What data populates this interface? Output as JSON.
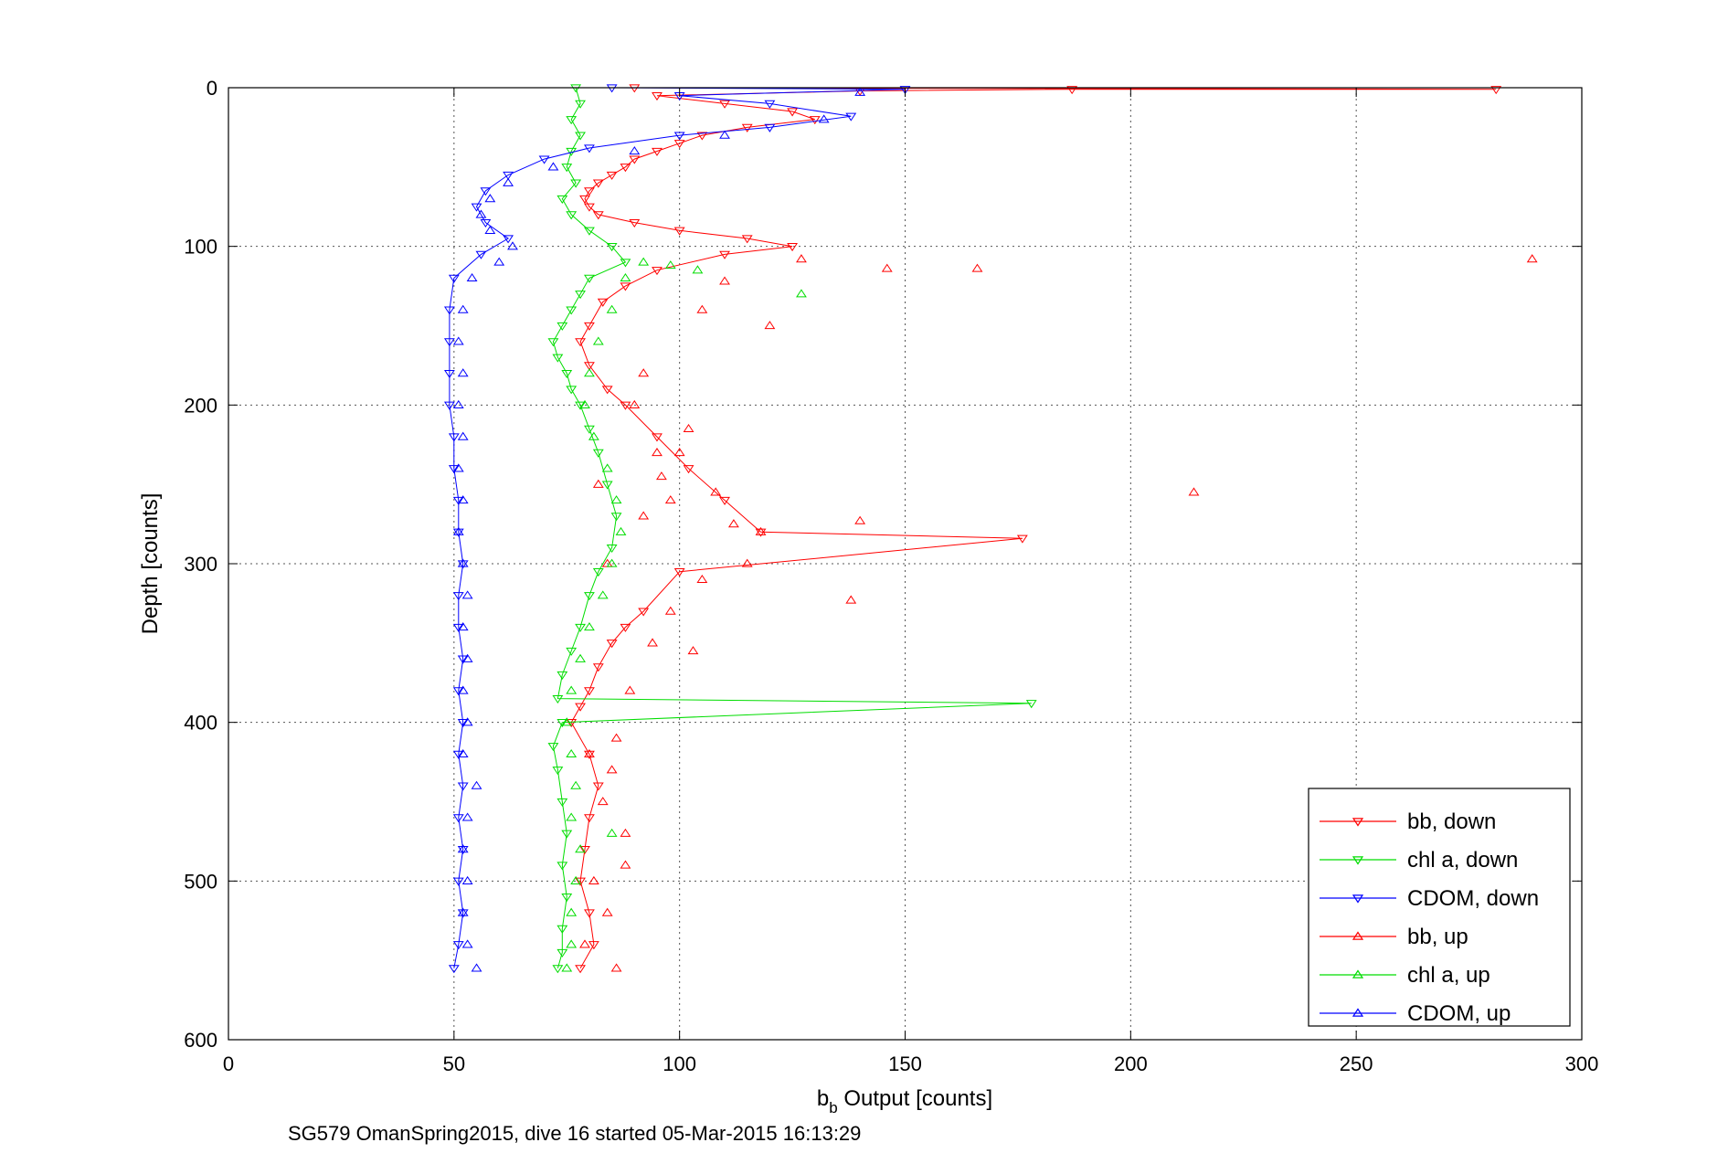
{
  "chart_data": {
    "type": "scatter",
    "xlabel": "Output [counts]",
    "xlabel_prefix": "b",
    "xlabel_sub": "b",
    "ylabel": "Depth [counts]",
    "caption": "SG579 OmanSpring2015, dive 16 started 05-Mar-2015 16:13:29",
    "xlim": [
      0,
      300
    ],
    "ylim": [
      0,
      600
    ],
    "y_reversed": true,
    "grid": true,
    "legend_position": "bottom-right",
    "x_ticks": [
      "0",
      "50",
      "100",
      "150",
      "200",
      "250",
      "300"
    ],
    "y_ticks": [
      "0",
      "100",
      "200",
      "300",
      "400",
      "500",
      "600"
    ],
    "series": [
      {
        "name": "bb, down",
        "color": "#ff0000",
        "marker": "triangle-down",
        "connected": true,
        "points": [
          [
            90,
            0
          ],
          [
            281,
            1
          ],
          [
            187,
            1
          ],
          [
            140,
            2
          ],
          [
            95,
            5
          ],
          [
            110,
            10
          ],
          [
            125,
            15
          ],
          [
            130,
            20
          ],
          [
            115,
            25
          ],
          [
            105,
            30
          ],
          [
            100,
            35
          ],
          [
            95,
            40
          ],
          [
            90,
            45
          ],
          [
            88,
            50
          ],
          [
            85,
            55
          ],
          [
            82,
            60
          ],
          [
            80,
            65
          ],
          [
            79,
            70
          ],
          [
            80,
            75
          ],
          [
            82,
            80
          ],
          [
            90,
            85
          ],
          [
            100,
            90
          ],
          [
            115,
            95
          ],
          [
            125,
            100
          ],
          [
            110,
            105
          ],
          [
            95,
            115
          ],
          [
            88,
            125
          ],
          [
            83,
            135
          ],
          [
            80,
            150
          ],
          [
            78,
            160
          ],
          [
            80,
            175
          ],
          [
            84,
            190
          ],
          [
            88,
            200
          ],
          [
            95,
            220
          ],
          [
            102,
            240
          ],
          [
            110,
            260
          ],
          [
            118,
            280
          ],
          [
            176,
            284
          ],
          [
            100,
            305
          ],
          [
            92,
            330
          ],
          [
            88,
            340
          ],
          [
            85,
            350
          ],
          [
            82,
            365
          ],
          [
            80,
            380
          ],
          [
            78,
            390
          ],
          [
            76,
            400
          ],
          [
            80,
            420
          ],
          [
            82,
            440
          ],
          [
            80,
            460
          ],
          [
            79,
            480
          ],
          [
            78,
            500
          ],
          [
            80,
            520
          ],
          [
            81,
            540
          ],
          [
            78,
            555
          ]
        ]
      },
      {
        "name": "chl a, down",
        "color": "#00dd00",
        "marker": "triangle-down",
        "connected": true,
        "points": [
          [
            77,
            0
          ],
          [
            78,
            10
          ],
          [
            76,
            20
          ],
          [
            78,
            30
          ],
          [
            76,
            40
          ],
          [
            75,
            50
          ],
          [
            77,
            60
          ],
          [
            74,
            70
          ],
          [
            76,
            80
          ],
          [
            80,
            90
          ],
          [
            85,
            100
          ],
          [
            88,
            110
          ],
          [
            80,
            120
          ],
          [
            78,
            130
          ],
          [
            76,
            140
          ],
          [
            74,
            150
          ],
          [
            72,
            160
          ],
          [
            73,
            170
          ],
          [
            75,
            180
          ],
          [
            76,
            190
          ],
          [
            78,
            200
          ],
          [
            80,
            215
          ],
          [
            82,
            230
          ],
          [
            84,
            250
          ],
          [
            86,
            270
          ],
          [
            85,
            290
          ],
          [
            82,
            305
          ],
          [
            80,
            320
          ],
          [
            78,
            340
          ],
          [
            76,
            355
          ],
          [
            74,
            370
          ],
          [
            73,
            385
          ],
          [
            178,
            388
          ],
          [
            74,
            400
          ],
          [
            72,
            415
          ],
          [
            73,
            430
          ],
          [
            74,
            450
          ],
          [
            75,
            470
          ],
          [
            74,
            490
          ],
          [
            75,
            510
          ],
          [
            74,
            530
          ],
          [
            74,
            545
          ],
          [
            73,
            555
          ]
        ]
      },
      {
        "name": "CDOM, down",
        "color": "#0000ff",
        "marker": "triangle-down",
        "connected": true,
        "points": [
          [
            85,
            0
          ],
          [
            150,
            1
          ],
          [
            100,
            5
          ],
          [
            120,
            10
          ],
          [
            138,
            18
          ],
          [
            120,
            25
          ],
          [
            100,
            30
          ],
          [
            80,
            38
          ],
          [
            70,
            45
          ],
          [
            62,
            55
          ],
          [
            57,
            65
          ],
          [
            55,
            75
          ],
          [
            57,
            85
          ],
          [
            62,
            95
          ],
          [
            56,
            105
          ],
          [
            50,
            120
          ],
          [
            49,
            140
          ],
          [
            49,
            160
          ],
          [
            49,
            180
          ],
          [
            49,
            200
          ],
          [
            50,
            220
          ],
          [
            50,
            240
          ],
          [
            51,
            260
          ],
          [
            51,
            280
          ],
          [
            52,
            300
          ],
          [
            51,
            320
          ],
          [
            51,
            340
          ],
          [
            52,
            360
          ],
          [
            51,
            380
          ],
          [
            52,
            400
          ],
          [
            51,
            420
          ],
          [
            52,
            440
          ],
          [
            51,
            460
          ],
          [
            52,
            480
          ],
          [
            51,
            500
          ],
          [
            52,
            520
          ],
          [
            51,
            540
          ],
          [
            50,
            555
          ]
        ]
      },
      {
        "name": "bb, up",
        "color": "#ff0000",
        "marker": "triangle-up",
        "connected": false,
        "points": [
          [
            289,
            108
          ],
          [
            214,
            255
          ],
          [
            166,
            114
          ],
          [
            146,
            114
          ],
          [
            140,
            273
          ],
          [
            138,
            323
          ],
          [
            127,
            108
          ],
          [
            120,
            150
          ],
          [
            118,
            280
          ],
          [
            115,
            300
          ],
          [
            112,
            275
          ],
          [
            108,
            255
          ],
          [
            105,
            310
          ],
          [
            102,
            215
          ],
          [
            100,
            230
          ],
          [
            98,
            330
          ],
          [
            96,
            245
          ],
          [
            94,
            350
          ],
          [
            92,
            270
          ],
          [
            90,
            200
          ],
          [
            89,
            380
          ],
          [
            88,
            470
          ],
          [
            86,
            410
          ],
          [
            85,
            430
          ],
          [
            84,
            300
          ],
          [
            83,
            450
          ],
          [
            82,
            250
          ],
          [
            81,
            500
          ],
          [
            80,
            420
          ],
          [
            79,
            540
          ],
          [
            86,
            555
          ],
          [
            84,
            520
          ],
          [
            88,
            490
          ],
          [
            110,
            122
          ],
          [
            105,
            140
          ],
          [
            95,
            230
          ],
          [
            98,
            260
          ],
          [
            92,
            180
          ],
          [
            103,
            355
          ]
        ]
      },
      {
        "name": "chl a, up",
        "color": "#00dd00",
        "marker": "triangle-up",
        "connected": false,
        "points": [
          [
            127,
            130
          ],
          [
            104,
            115
          ],
          [
            98,
            112
          ],
          [
            92,
            110
          ],
          [
            88,
            120
          ],
          [
            85,
            140
          ],
          [
            82,
            160
          ],
          [
            80,
            180
          ],
          [
            79,
            200
          ],
          [
            81,
            220
          ],
          [
            84,
            240
          ],
          [
            86,
            260
          ],
          [
            87,
            280
          ],
          [
            85,
            300
          ],
          [
            83,
            320
          ],
          [
            80,
            340
          ],
          [
            78,
            360
          ],
          [
            76,
            380
          ],
          [
            75,
            400
          ],
          [
            76,
            420
          ],
          [
            77,
            440
          ],
          [
            76,
            460
          ],
          [
            78,
            480
          ],
          [
            77,
            500
          ],
          [
            76,
            520
          ],
          [
            76,
            540
          ],
          [
            75,
            555
          ],
          [
            85,
            470
          ]
        ]
      },
      {
        "name": "CDOM, up",
        "color": "#0000ff",
        "marker": "triangle-up",
        "connected": false,
        "points": [
          [
            140,
            3
          ],
          [
            132,
            20
          ],
          [
            110,
            30
          ],
          [
            90,
            40
          ],
          [
            72,
            50
          ],
          [
            62,
            60
          ],
          [
            58,
            70
          ],
          [
            56,
            80
          ],
          [
            58,
            90
          ],
          [
            63,
            100
          ],
          [
            60,
            110
          ],
          [
            54,
            120
          ],
          [
            52,
            140
          ],
          [
            51,
            160
          ],
          [
            52,
            180
          ],
          [
            51,
            200
          ],
          [
            52,
            220
          ],
          [
            51,
            240
          ],
          [
            52,
            260
          ],
          [
            51,
            280
          ],
          [
            52,
            300
          ],
          [
            53,
            320
          ],
          [
            52,
            340
          ],
          [
            53,
            360
          ],
          [
            52,
            380
          ],
          [
            53,
            400
          ],
          [
            52,
            420
          ],
          [
            55,
            440
          ],
          [
            53,
            460
          ],
          [
            52,
            480
          ],
          [
            53,
            500
          ],
          [
            52,
            520
          ],
          [
            53,
            540
          ],
          [
            55,
            555
          ]
        ]
      }
    ]
  }
}
